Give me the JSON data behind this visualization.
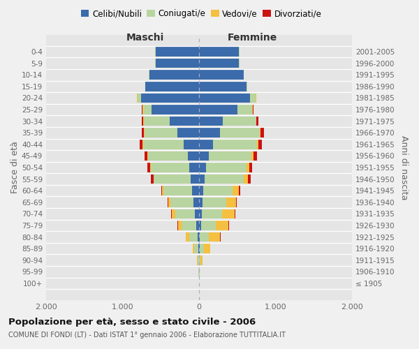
{
  "age_groups": [
    "100+",
    "95-99",
    "90-94",
    "85-89",
    "80-84",
    "75-79",
    "70-74",
    "65-69",
    "60-64",
    "55-59",
    "50-54",
    "45-49",
    "40-44",
    "35-39",
    "30-34",
    "25-29",
    "20-24",
    "15-19",
    "10-14",
    "5-9",
    "0-4"
  ],
  "birth_years": [
    "≤ 1905",
    "1906-1910",
    "1911-1915",
    "1916-1920",
    "1921-1925",
    "1926-1930",
    "1931-1935",
    "1936-1940",
    "1941-1945",
    "1946-1950",
    "1951-1955",
    "1956-1960",
    "1961-1965",
    "1966-1970",
    "1971-1975",
    "1976-1980",
    "1981-1985",
    "1986-1990",
    "1991-1995",
    "1996-2000",
    "2001-2005"
  ],
  "maschi_celibi": [
    2,
    2,
    4,
    8,
    18,
    38,
    55,
    72,
    90,
    110,
    125,
    145,
    200,
    285,
    380,
    620,
    760,
    700,
    650,
    570,
    570
  ],
  "maschi_coniugati": [
    2,
    4,
    18,
    52,
    108,
    190,
    255,
    305,
    375,
    480,
    505,
    525,
    535,
    430,
    345,
    115,
    45,
    5,
    4,
    2,
    2
  ],
  "maschi_vedovi": [
    0,
    0,
    4,
    20,
    44,
    46,
    46,
    26,
    16,
    8,
    5,
    5,
    4,
    4,
    4,
    4,
    4,
    0,
    0,
    0,
    0
  ],
  "maschi_divorziati": [
    0,
    0,
    2,
    4,
    4,
    8,
    12,
    12,
    12,
    32,
    42,
    36,
    36,
    26,
    16,
    8,
    4,
    0,
    0,
    0,
    0
  ],
  "femmine_nubili": [
    2,
    2,
    4,
    8,
    12,
    26,
    36,
    46,
    56,
    72,
    92,
    125,
    185,
    275,
    315,
    505,
    665,
    625,
    585,
    525,
    525
  ],
  "femmine_coniugate": [
    2,
    4,
    18,
    52,
    112,
    192,
    262,
    312,
    382,
    508,
    532,
    562,
    572,
    522,
    432,
    192,
    76,
    5,
    4,
    2,
    2
  ],
  "femmine_vedove": [
    0,
    4,
    26,
    86,
    152,
    165,
    165,
    125,
    86,
    56,
    36,
    26,
    16,
    8,
    4,
    4,
    4,
    0,
    0,
    0,
    0
  ],
  "femmine_divorziate": [
    0,
    0,
    2,
    4,
    4,
    8,
    12,
    12,
    12,
    36,
    36,
    42,
    46,
    46,
    26,
    8,
    4,
    0,
    0,
    0,
    0
  ],
  "colors": {
    "celibi_nubili": "#3b6baa",
    "coniugati": "#b8d4a0",
    "vedovi": "#f5c040",
    "divorziati": "#cc1111"
  },
  "title": "Popolazione per età, sesso e stato civile - 2006",
  "subtitle": "COMUNE DI FONDI (LT) - Dati ISTAT 1° gennaio 2006 - Elaborazione TUTTITALIA.IT",
  "xlabel_left": "Maschi",
  "xlabel_right": "Femmine",
  "ylabel_left": "Fasce di età",
  "ylabel_right": "Anni di nascita",
  "xlim": 2000,
  "xticklabels": [
    "2.000",
    "1.000",
    "0",
    "1.000",
    "2.000"
  ],
  "background_color": "#f0f0f0",
  "plot_bg": "#e5e5e5",
  "legend_labels": [
    "Celibi/Nubili",
    "Coniugati/e",
    "Vedovi/e",
    "Divorziati/e"
  ]
}
